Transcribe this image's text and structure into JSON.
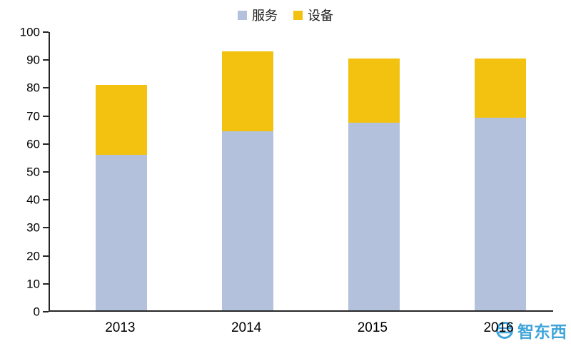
{
  "chart_data": {
    "type": "bar",
    "stacked": true,
    "title": "",
    "categories": [
      "2013",
      "2014",
      "2015",
      "2016"
    ],
    "series": [
      {
        "name": "服务",
        "color": "#B3C1DC",
        "values": [
          55.5,
          64,
          67,
          69
        ]
      },
      {
        "name": "设备",
        "color": "#F3C211",
        "values": [
          25,
          28.5,
          23,
          21
        ]
      }
    ],
    "totals": [
      80.5,
      92.5,
      90,
      90
    ],
    "ylim": [
      0,
      100
    ],
    "ytick_step": 10,
    "xlabel": "",
    "ylabel": "",
    "grid": false,
    "legend_position": "top",
    "axis_color": "#262626"
  },
  "watermark": {
    "text": "智东西",
    "color": "#2E9CD6"
  }
}
